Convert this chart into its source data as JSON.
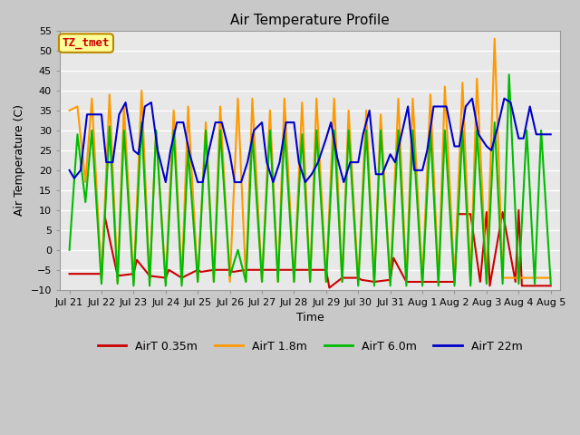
{
  "title": "Air Temperature Profile",
  "xlabel": "Time",
  "ylabel": "Air Temperature (C)",
  "ylim": [
    -10,
    55
  ],
  "yticks": [
    -10,
    -5,
    0,
    5,
    10,
    15,
    20,
    25,
    30,
    35,
    40,
    45,
    50,
    55
  ],
  "annotation_text": "TZ_tmet",
  "annotation_color": "#cc0000",
  "annotation_bg": "#ffff99",
  "annotation_border": "#bb8800",
  "colors": {
    "AirT 0.35m": "#cc0000",
    "AirT 1.8m": "#ff9900",
    "AirT 6.0m": "#00bb00",
    "AirT 22m": "#0000cc"
  },
  "fig_bg": "#c8c8c8",
  "plot_bg": "#e8e8e8",
  "grid_color": "#ffffff",
  "x_labels": [
    "Jul 21",
    "Jul 22",
    "Jul 23",
    "Jul 24",
    "Jul 25",
    "Jul 26",
    "Jul 27",
    "Jul 28",
    "Jul 29",
    "Jul 30",
    "Jul 31",
    "Aug 1",
    "Aug 2",
    "Aug 3",
    "Aug 4",
    "Aug 5"
  ],
  "x_tick_pos": [
    0,
    1,
    2,
    3,
    4,
    5,
    6,
    7,
    8,
    9,
    10,
    11,
    12,
    13,
    14,
    15
  ],
  "xlim": [
    -0.3,
    15.3
  ],
  "series": {
    "AirT 0.35m": {
      "x": [
        0.0,
        0.6,
        1.0,
        1.1,
        1.5,
        2.0,
        2.1,
        2.5,
        3.0,
        3.1,
        3.5,
        4.0,
        4.1,
        4.5,
        5.0,
        5.1,
        5.5,
        6.0,
        6.1,
        6.5,
        7.0,
        7.1,
        7.5,
        8.0,
        8.1,
        8.5,
        9.0,
        9.1,
        9.5,
        10.0,
        10.1,
        10.5,
        11.0,
        11.1,
        11.5,
        11.9,
        12.0,
        12.1,
        12.5,
        12.8,
        13.0,
        13.1,
        13.5,
        13.9,
        14.0,
        14.1,
        14.4,
        14.5,
        15.0
      ],
      "y": [
        -6.0,
        -6.0,
        -6.0,
        8.5,
        -6.5,
        -6.0,
        -2.5,
        -6.5,
        -7.0,
        -5.0,
        -7.0,
        -5.0,
        -5.5,
        -5.0,
        -5.0,
        -5.5,
        -5.0,
        -5.0,
        -5.0,
        -5.0,
        -5.0,
        -5.0,
        -5.0,
        -5.0,
        -9.5,
        -7.0,
        -7.0,
        -7.5,
        -8.0,
        -7.5,
        -2.0,
        -8.0,
        -8.0,
        -8.0,
        -8.0,
        -8.0,
        -8.0,
        9.0,
        9.0,
        -8.0,
        9.5,
        -9.0,
        9.5,
        -8.0,
        10.0,
        -9.0,
        -9.0,
        -9.0,
        -9.0
      ]
    },
    "AirT 1.8m": {
      "x": [
        0.0,
        0.25,
        0.5,
        0.7,
        1.0,
        1.25,
        1.5,
        1.7,
        2.0,
        2.25,
        2.5,
        2.7,
        3.0,
        3.25,
        3.5,
        3.7,
        4.0,
        4.25,
        4.5,
        4.7,
        5.0,
        5.25,
        5.5,
        5.7,
        6.0,
        6.25,
        6.5,
        6.7,
        7.0,
        7.25,
        7.5,
        7.7,
        8.0,
        8.25,
        8.5,
        8.7,
        9.0,
        9.25,
        9.5,
        9.7,
        10.0,
        10.25,
        10.5,
        10.7,
        11.0,
        11.25,
        11.5,
        11.7,
        12.0,
        12.25,
        12.5,
        12.7,
        13.0,
        13.25,
        13.5,
        13.7,
        14.0,
        14.25,
        14.5,
        14.7,
        15.0
      ],
      "y": [
        35.0,
        36.0,
        17.0,
        38.0,
        -8.0,
        39.0,
        -8.0,
        36.0,
        -8.0,
        40.0,
        -8.0,
        30.0,
        -8.0,
        35.0,
        -8.0,
        36.0,
        -8.0,
        32.0,
        -8.0,
        36.0,
        -8.0,
        38.0,
        -8.0,
        38.0,
        -8.0,
        35.0,
        -8.0,
        38.0,
        -8.0,
        37.0,
        -8.0,
        38.0,
        -8.0,
        38.0,
        -8.0,
        35.0,
        -8.0,
        35.0,
        -8.0,
        34.0,
        -8.0,
        38.0,
        -8.0,
        38.0,
        -8.0,
        39.0,
        -8.0,
        41.0,
        -8.0,
        42.0,
        -8.0,
        43.0,
        -8.0,
        53.0,
        -7.0,
        -7.0,
        -7.0,
        -7.0,
        -7.0,
        -7.0,
        -7.0
      ]
    },
    "AirT 6.0m": {
      "x": [
        0.0,
        0.25,
        0.5,
        0.7,
        1.0,
        1.25,
        1.5,
        1.7,
        2.0,
        2.25,
        2.5,
        2.7,
        3.0,
        3.25,
        3.5,
        3.7,
        4.0,
        4.25,
        4.5,
        4.7,
        5.0,
        5.25,
        5.5,
        5.7,
        6.0,
        6.25,
        6.5,
        6.7,
        7.0,
        7.25,
        7.5,
        7.7,
        8.0,
        8.25,
        8.5,
        8.7,
        9.0,
        9.25,
        9.5,
        9.7,
        10.0,
        10.25,
        10.5,
        10.7,
        11.0,
        11.25,
        11.5,
        11.7,
        12.0,
        12.25,
        12.5,
        12.7,
        13.0,
        13.25,
        13.5,
        13.7,
        14.0,
        14.25,
        14.5,
        14.7,
        15.0
      ],
      "y": [
        0.0,
        29.0,
        12.0,
        30.0,
        -8.5,
        31.0,
        -8.5,
        30.0,
        -9.0,
        32.0,
        -9.0,
        30.0,
        -9.0,
        30.0,
        -9.0,
        25.0,
        -8.0,
        30.0,
        -8.0,
        30.0,
        -6.5,
        0.0,
        -8.0,
        29.0,
        -8.0,
        30.0,
        -8.0,
        30.0,
        -8.0,
        29.0,
        -8.0,
        30.0,
        -8.0,
        30.0,
        -8.0,
        30.0,
        -9.0,
        30.0,
        -9.0,
        30.0,
        -9.0,
        30.0,
        -9.0,
        30.0,
        -9.0,
        30.0,
        -9.0,
        30.0,
        -9.0,
        30.0,
        -9.0,
        30.0,
        -8.5,
        32.0,
        -8.5,
        44.0,
        -8.5,
        30.0,
        -8.5,
        30.0,
        -8.5
      ]
    },
    "AirT 22m": {
      "x": [
        0.0,
        0.15,
        0.35,
        0.55,
        0.75,
        1.0,
        1.15,
        1.35,
        1.55,
        1.75,
        2.0,
        2.15,
        2.35,
        2.55,
        2.75,
        3.0,
        3.15,
        3.35,
        3.55,
        3.75,
        4.0,
        4.15,
        4.35,
        4.55,
        4.75,
        5.0,
        5.15,
        5.35,
        5.55,
        5.75,
        6.0,
        6.15,
        6.35,
        6.55,
        6.75,
        7.0,
        7.15,
        7.35,
        7.55,
        7.75,
        8.0,
        8.15,
        8.35,
        8.55,
        8.75,
        9.0,
        9.15,
        9.35,
        9.55,
        9.75,
        10.0,
        10.15,
        10.35,
        10.55,
        10.75,
        11.0,
        11.15,
        11.35,
        11.55,
        11.75,
        12.0,
        12.15,
        12.35,
        12.55,
        12.75,
        13.0,
        13.15,
        13.35,
        13.55,
        13.75,
        14.0,
        14.15,
        14.35,
        14.55,
        14.75,
        15.0
      ],
      "y": [
        20.0,
        18.0,
        20.0,
        34.0,
        34.0,
        34.0,
        22.0,
        22.0,
        34.0,
        37.0,
        25.0,
        24.0,
        36.0,
        37.0,
        25.0,
        17.0,
        25.0,
        32.0,
        32.0,
        24.0,
        17.0,
        17.0,
        25.0,
        32.0,
        32.0,
        24.0,
        17.0,
        17.0,
        22.0,
        30.0,
        32.0,
        22.0,
        17.0,
        22.0,
        32.0,
        32.0,
        22.0,
        17.0,
        19.0,
        22.0,
        28.0,
        32.0,
        23.0,
        17.0,
        22.0,
        22.0,
        29.0,
        35.0,
        19.0,
        19.0,
        24.0,
        22.0,
        29.0,
        36.0,
        20.0,
        20.0,
        25.0,
        36.0,
        36.0,
        36.0,
        26.0,
        26.0,
        36.0,
        38.0,
        29.0,
        26.0,
        25.0,
        31.0,
        38.0,
        37.0,
        28.0,
        28.0,
        36.0,
        29.0,
        29.0,
        29.0
      ]
    }
  }
}
